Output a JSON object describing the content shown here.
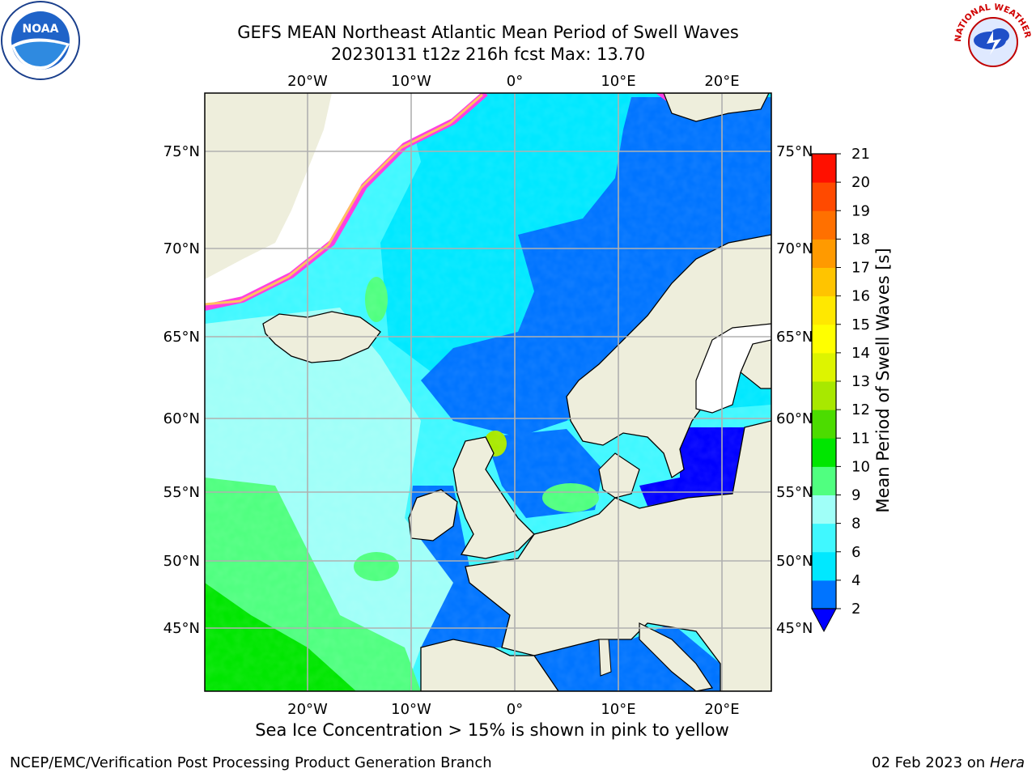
{
  "title_line1": "GEFS MEAN Northeast Atlantic Mean Period of Swell Waves",
  "title_line2": "20230131 t12z 216h fcst   Max: 13.70",
  "footnote": "Sea Ice Concentration > 15% is shown in pink to yellow",
  "credit": "NCEP/EMC/Verification Post Processing Product Generation Branch",
  "run_date": "02 Feb 2023",
  "run_on": "on",
  "host": "Hera",
  "noaa_logo": {
    "icon": "noaa-logo-icon",
    "text": "NOAA"
  },
  "nws_logo": {
    "icon": "nws-logo-icon",
    "text": "NATIONAL WEATHER SERVICE"
  },
  "map": {
    "lon_labels": [
      "20°W",
      "10°W",
      "0°",
      "10°E",
      "20°E"
    ],
    "lat_labels": [
      "75°N",
      "70°N",
      "65°N",
      "60°N",
      "55°N",
      "50°N",
      "45°N"
    ],
    "colors": {
      "land": "#eeeedc",
      "ice_free_water": "#ffffff",
      "coast": "#000000",
      "grid": "#b0b0b0"
    }
  },
  "colorbar": {
    "label": "Mean Period of Swell Waves [s]",
    "ticks": [
      "2",
      "4",
      "6",
      "8",
      "9",
      "10",
      "11",
      "12",
      "13",
      "14",
      "15",
      "16",
      "17",
      "18",
      "19",
      "20",
      "21"
    ],
    "colors": [
      "#0074ff",
      "#00e8ff",
      "#40f8ff",
      "#a0fff8",
      "#50ff80",
      "#00e600",
      "#4cdc00",
      "#a8e800",
      "#ddf400",
      "#ffff00",
      "#ffe800",
      "#ffc400",
      "#ff9a00",
      "#ff7000",
      "#ff4a00",
      "#ff1000"
    ],
    "under_color": "#0000ff"
  }
}
